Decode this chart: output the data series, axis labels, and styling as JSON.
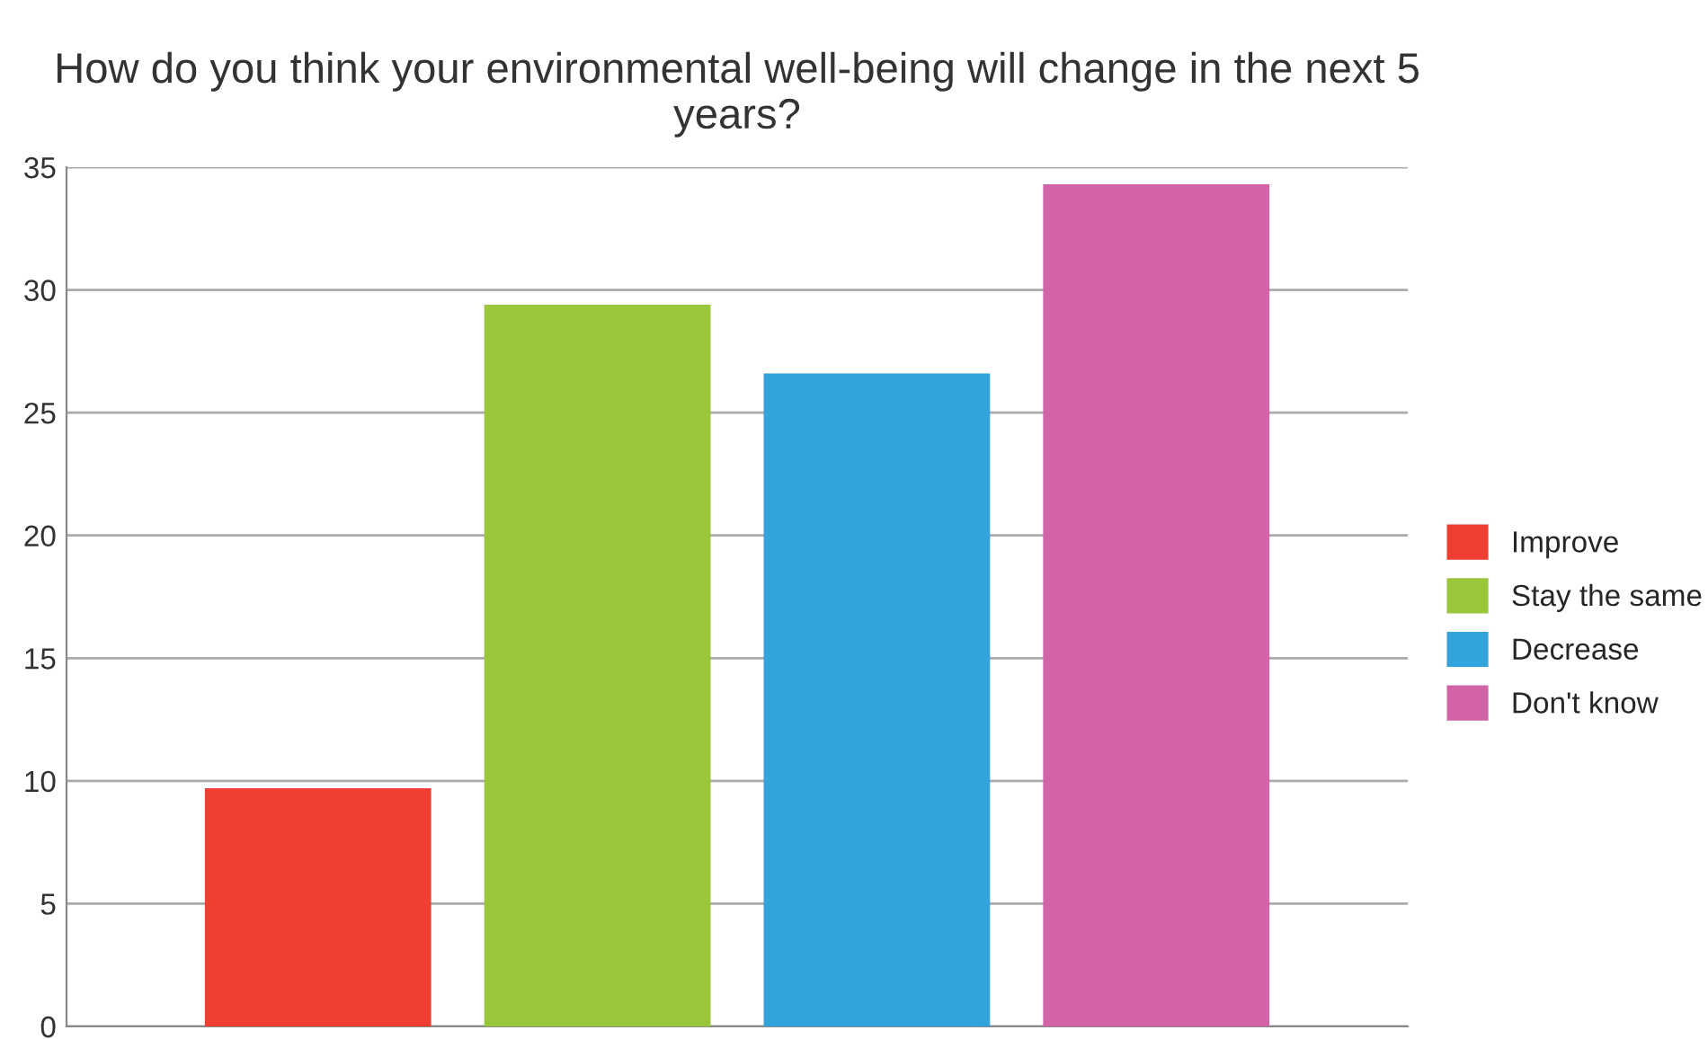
{
  "chart_data": {
    "type": "bar",
    "title": "How do you think your environmental well-being will change in the next 5 years?",
    "categories": [
      null,
      null,
      null,
      null
    ],
    "series": [
      {
        "name": "Improve",
        "color": "#f03e32",
        "values": [
          9.7,
          null,
          null,
          null
        ]
      },
      {
        "name": "Stay the same",
        "color": "#9ac63c",
        "values": [
          null,
          29.4,
          null,
          null
        ]
      },
      {
        "name": "Decrease",
        "color": "#33a3dc",
        "values": [
          null,
          null,
          26.6,
          null
        ]
      },
      {
        "name": "Don't know",
        "color": "#d163a6",
        "values": [
          null,
          null,
          null,
          34.3
        ]
      }
    ],
    "ylim": [
      0,
      35
    ],
    "yticks": [
      0,
      5,
      10,
      15,
      20,
      25,
      30,
      35
    ],
    "grid": "y",
    "legend": "right"
  }
}
